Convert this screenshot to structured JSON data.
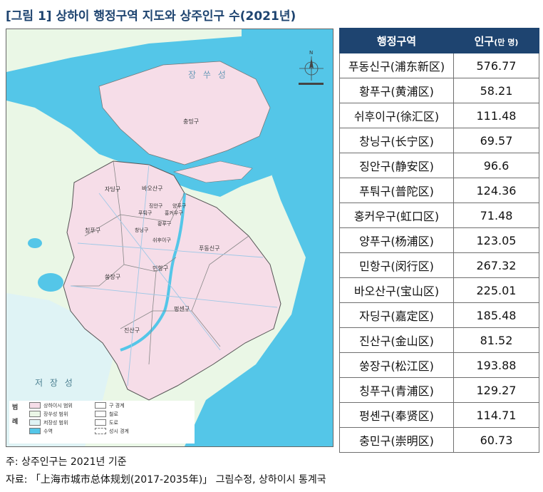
{
  "title": "[그림 1] 상하이 행정구역 지도와 상주인구 수(2021년)",
  "map_labels": {
    "jiangsu": "장 쑤 성",
    "zhejiang": "저 장 성",
    "chongming": "충밍구",
    "jiading": "자딩구",
    "baoshan": "바오산구",
    "qingpu": "칭푸구",
    "putuo": "푸퉈구",
    "jingan": "징안구",
    "yangpu": "양푸구",
    "hongkou": "홍커우구",
    "changning": "창닝구",
    "huangpu": "황푸구",
    "xuhui": "쉬후이구",
    "minhang": "민항구",
    "songjiang": "쑹장구",
    "pudong": "푸동신구",
    "fengxian": "펑센구",
    "jinshan": "진산구",
    "north_mark": "N"
  },
  "legend": {
    "header_a": "범",
    "header_b": "례",
    "items": {
      "shanghai_area": "상하이시 범위",
      "jiangsu_area": "장쑤성 범위",
      "zhejiang_area": "저장성 범위",
      "water": "수역",
      "district_border": "구 경계",
      "railway": "철로",
      "road": "도로",
      "province_border": "성시 경계"
    },
    "colors": {
      "shanghai": "#f6dde8",
      "jiangsu": "#eaf7e6",
      "zhejiang": "#dff3f5",
      "water": "#54c6e8"
    }
  },
  "table": {
    "header_district": "행정구역",
    "header_pop": "인구",
    "header_unit": "(만 명)",
    "rows": [
      {
        "district": "푸동신구(浦东新区)",
        "population": "576.77"
      },
      {
        "district": "황푸구(黄浦区)",
        "population": "58.21"
      },
      {
        "district": "쉬후이구(徐汇区)",
        "population": "111.48"
      },
      {
        "district": "창닝구(长宁区)",
        "population": "69.57"
      },
      {
        "district": "징안구(静安区)",
        "population": "96.6"
      },
      {
        "district": "푸퉈구(普陀区)",
        "population": "124.36"
      },
      {
        "district": "홍커우구(虹口区)",
        "population": "71.48"
      },
      {
        "district": "양푸구(杨浦区)",
        "population": "123.05"
      },
      {
        "district": "민항구(闵行区)",
        "population": "267.32"
      },
      {
        "district": "바오산구(宝山区)",
        "population": "225.01"
      },
      {
        "district": "자딩구(嘉定区)",
        "population": "185.48"
      },
      {
        "district": "진산구(金山区)",
        "population": "81.52"
      },
      {
        "district": "쑹장구(松江区)",
        "population": "193.88"
      },
      {
        "district": "칭푸구(青浦区)",
        "population": "129.27"
      },
      {
        "district": "펑셴구(奉贤区)",
        "population": "114.71"
      },
      {
        "district": "충민구(崇明区)",
        "population": "60.73"
      }
    ]
  },
  "notes": {
    "note1": "주: 상주인구는 2021년 기준",
    "note2": "자료: 「上海市城市总体规划(2017-2035年)」 그림수정, 상하이시 통계국"
  }
}
